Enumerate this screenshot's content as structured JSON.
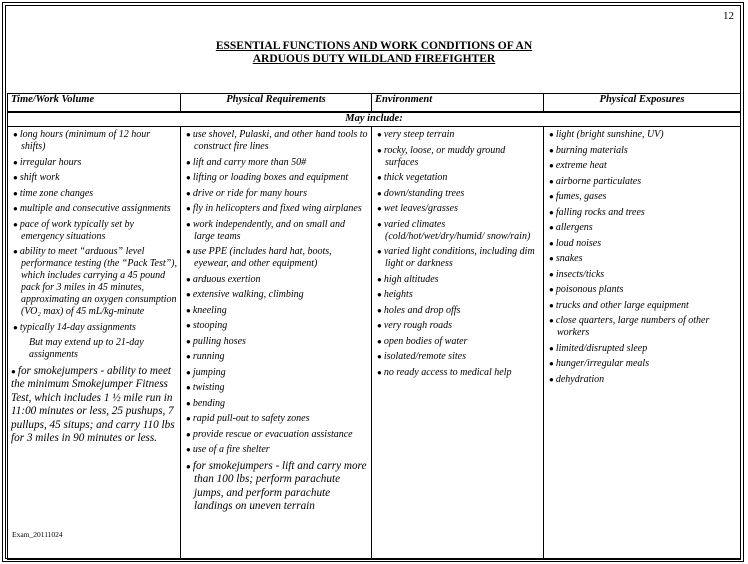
{
  "page_number": "12",
  "title_line1": "ESSENTIAL FUNCTIONS AND WORK CONDITIONS OF AN",
  "title_line2": "ARDUOUS DUTY WILDLAND FIREFIGHTER",
  "headers": [
    "Time/Work Volume",
    "Physical Requirements",
    "Environment",
    "Physical Exposures"
  ],
  "may_include": "May include:",
  "columns": [
    [
      {
        "t": "long hours (minimum of 12 hour shifts)"
      },
      {
        "t": "irregular hours"
      },
      {
        "t": "shift work"
      },
      {
        "t": "time zone changes"
      },
      {
        "t": "multiple and consecutive assignments"
      },
      {
        "t": "pace of work typically set by emergency situations"
      },
      {
        "t": "ability to meet “arduous” level performance testing (the “Pack Test”), which includes carrying a 45 pound pack for  3 miles in 45 minutes, approximating an oxygen consumption (VO₂ max) of   45 mL/kg-minute"
      },
      {
        "t": "typically 14-day assignments"
      },
      {
        "t": "But may extend up to 21-day assignments",
        "style": "sub"
      },
      {
        "t": "for smokejumpers - ability to meet the minimum Smokejumper Fitness Test, which includes 1 ½ mile run in 11:00 minutes or less, 25 pushups, 7 pullups, 45 situps; and carry 110 lbs for 3 miles in 90 minutes or less.",
        "style": "big"
      }
    ],
    [
      {
        "t": "use shovel, Pulaski, and other hand tools to construct fire lines"
      },
      {
        "t": "lift and carry more than 50#"
      },
      {
        "t": "lifting or loading boxes and equipment"
      },
      {
        "t": "drive or ride for many hours"
      },
      {
        "t": "fly in helicopters and fixed  wing airplanes"
      },
      {
        "t": "work independently, and on small and large teams"
      },
      {
        "t": "use PPE (includes hard hat, boots, eyewear, and other equipment)"
      },
      {
        "t": "arduous exertion"
      },
      {
        "t": "extensive walking, climbing"
      },
      {
        "t": "kneeling"
      },
      {
        "t": "stooping"
      },
      {
        "t": "pulling hoses"
      },
      {
        "t": "running"
      },
      {
        "t": "jumping"
      },
      {
        "t": "twisting"
      },
      {
        "t": "bending"
      },
      {
        "t": "rapid pull-out to safety zones"
      },
      {
        "t": "provide rescue or evacuation assistance"
      },
      {
        "t": "use of a fire shelter"
      },
      {
        "t": "for smokejumpers - lift and carry more than 100 lbs; perform parachute jumps, and perform parachute landings on uneven terrain",
        "style": "bigi"
      }
    ],
    [
      {
        "t": "very steep terrain"
      },
      {
        "t": "rocky, loose, or muddy ground surfaces"
      },
      {
        "t": "thick vegetation"
      },
      {
        "t": "down/standing trees"
      },
      {
        "t": "wet leaves/grasses"
      },
      {
        "t": "varied climates (cold/hot/wet/dry/humid/ snow/rain)"
      },
      {
        "t": "varied light conditions, including dim light or darkness"
      },
      {
        "t": "high altitudes"
      },
      {
        "t": "heights"
      },
      {
        "t": "holes and drop offs"
      },
      {
        "t": "very rough roads"
      },
      {
        "t": "open bodies of water"
      },
      {
        "t": "isolated/remote sites"
      },
      {
        "t": "no ready access to medical help"
      }
    ],
    [
      {
        "t": "light (bright sunshine, UV)"
      },
      {
        "t": "burning materials"
      },
      {
        "t": "extreme heat"
      },
      {
        "t": "airborne particulates"
      },
      {
        "t": "fumes, gases"
      },
      {
        "t": "falling rocks and trees"
      },
      {
        "t": "allergens"
      },
      {
        "t": "loud noises"
      },
      {
        "t": "snakes"
      },
      {
        "t": "insects/ticks"
      },
      {
        "t": "poisonous plants"
      },
      {
        "t": "trucks and other large equipment"
      },
      {
        "t": "close quarters, large numbers of other workers"
      },
      {
        "t": "limited/disrupted sleep"
      },
      {
        "t": "hunger/irregular meals"
      },
      {
        "t": "dehydration"
      }
    ]
  ],
  "footer_code": "Exam_20111024"
}
